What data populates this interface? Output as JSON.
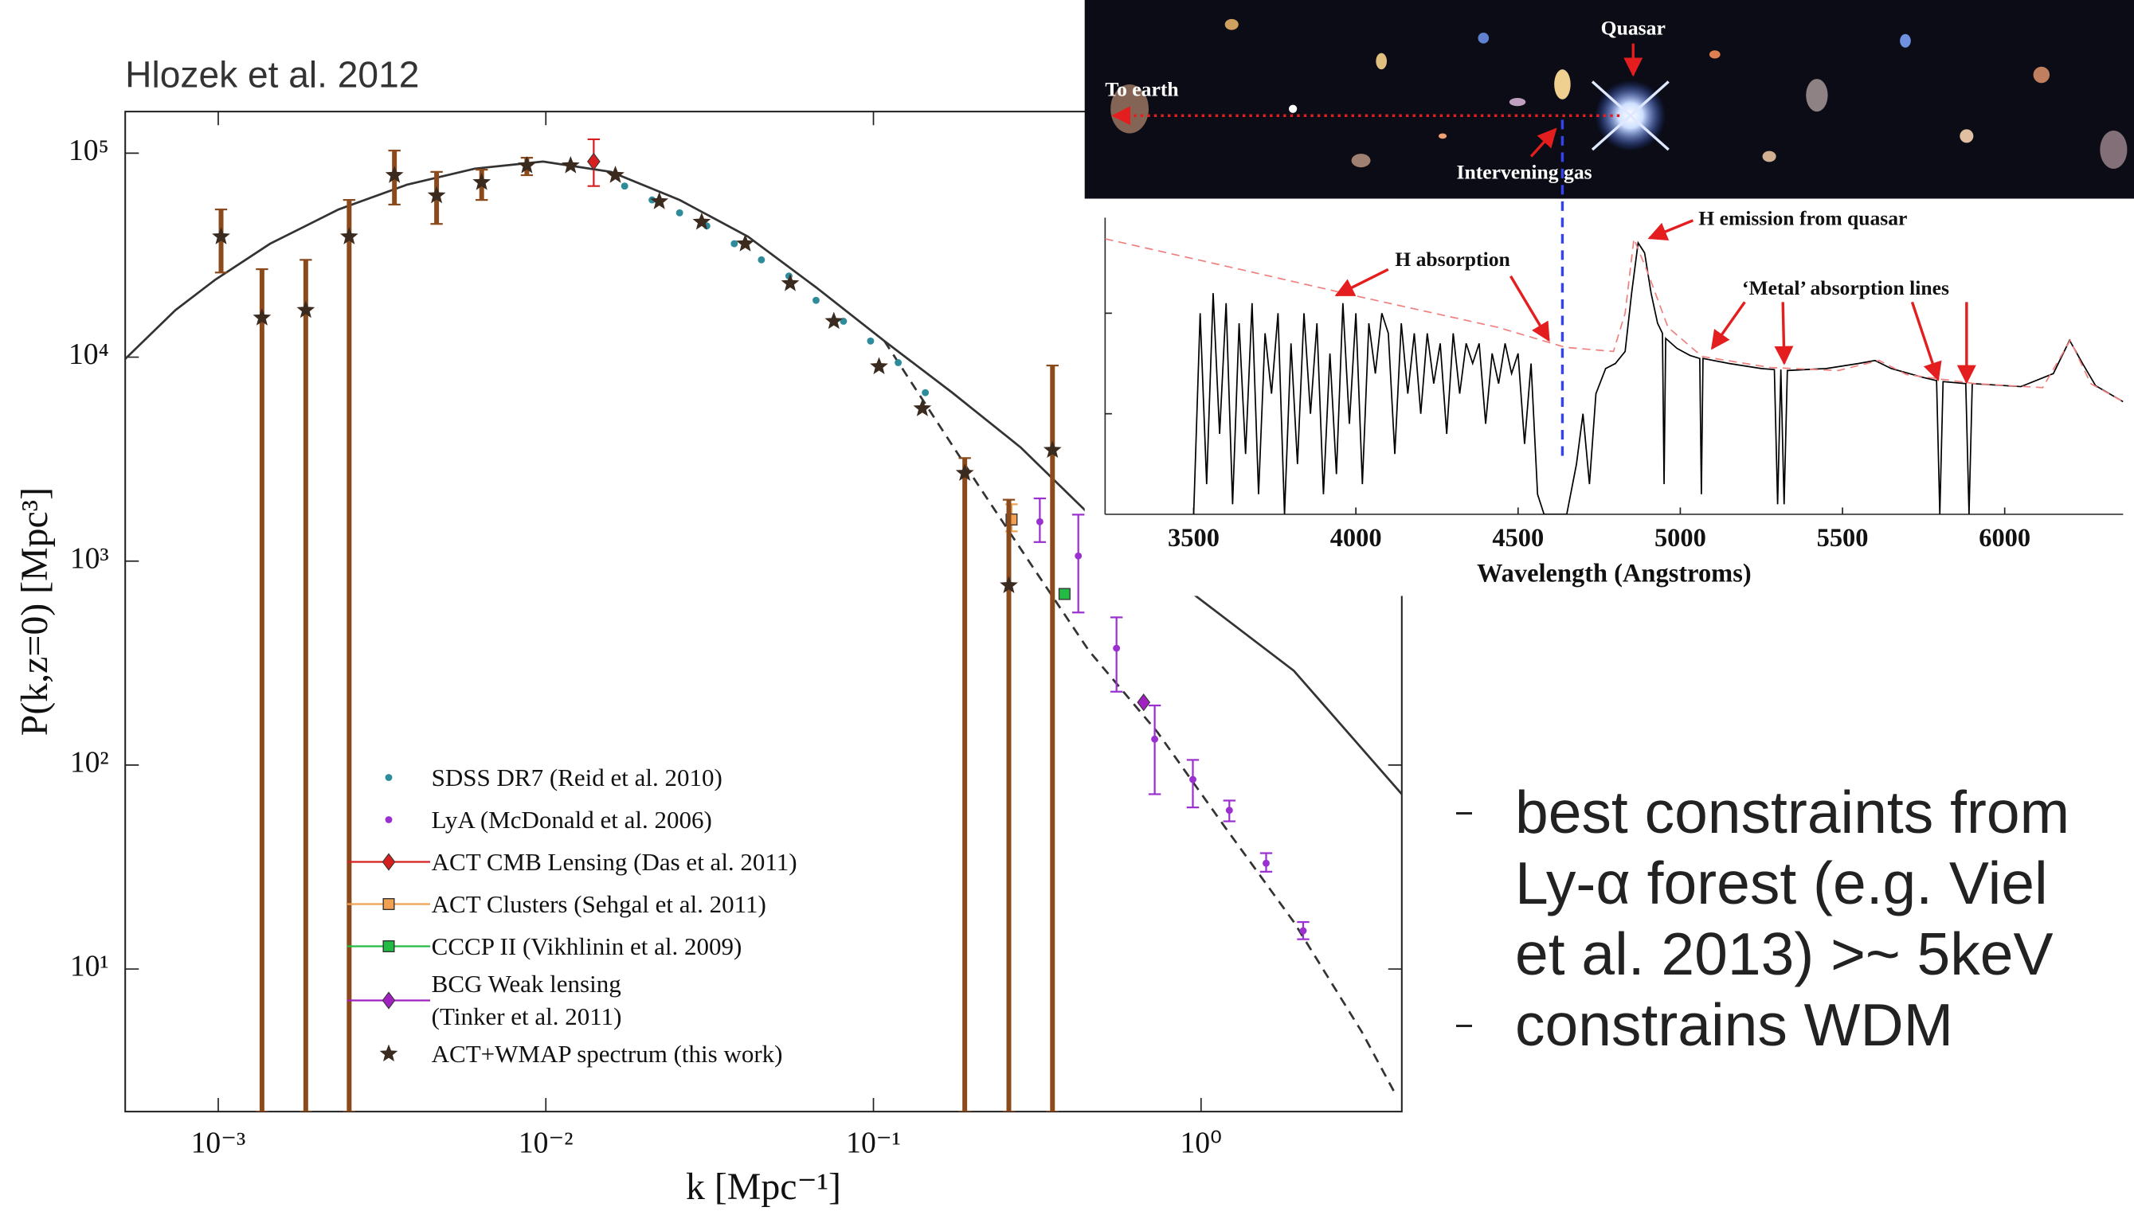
{
  "slide": {
    "citation": "Hlozek et al. 2012",
    "bullets": [
      "best constraints from Ly-α forest (e.g. Viel et al. 2013) >~ 5keV",
      "constrains WDM"
    ]
  },
  "image": {
    "labels": [
      "Quasar",
      "To earth",
      "Intervening gas"
    ]
  },
  "chart_data": [
    {
      "type": "scatter",
      "xlabel": "k [Mpc⁻¹]",
      "ylabel": "P(k,z=0) [Mpc³]",
      "xscale": "log",
      "yscale": "log",
      "xlim": [
        0.00052,
        4.1
      ],
      "ylim": [
        2,
        160000
      ],
      "xticks": [
        {
          "value": 0.001,
          "label": "10⁻³"
        },
        {
          "value": 0.01,
          "label": "10⁻²"
        },
        {
          "value": 0.1,
          "label": "10⁻¹"
        },
        {
          "value": 1,
          "label": "10⁰"
        }
      ],
      "yticks": [
        {
          "value": 10,
          "label": "10¹"
        },
        {
          "value": 100,
          "label": "10²"
        },
        {
          "value": 1000,
          "label": "10³"
        },
        {
          "value": 10000,
          "label": "10⁴"
        },
        {
          "value": 100000,
          "label": "10⁵"
        }
      ],
      "legend": "lower left",
      "series": [
        {
          "style": "solid",
          "color": "#333333",
          "x": [
            0.00052,
            0.00074,
            0.00098,
            0.00144,
            0.00233,
            0.00376,
            0.00607,
            0.0098,
            0.0158,
            0.0256,
            0.0414,
            0.0668,
            0.108,
            0.174,
            0.282,
            0.455,
            0.935,
            1.92,
            4.1
          ],
          "values": [
            9800,
            17000,
            24000,
            36000,
            53000,
            70000,
            84000,
            91000,
            81000,
            59000,
            39000,
            22000,
            12000,
            6700,
            3600,
            1700,
            700,
            290,
            72
          ]
        },
        {
          "style": "dashed",
          "color": "#333333",
          "x": [
            0.108,
            0.144,
            0.211,
            0.31,
            0.455,
            0.736,
            1.19,
            1.92,
            3.1,
            3.94
          ],
          "values": [
            12000,
            5900,
            2300,
            910,
            363,
            145,
            49,
            17,
            4.9,
            2.4
          ]
        },
        {
          "name": "SDSS DR7 (Reid et al. 2010)",
          "marker": "dot",
          "color": "#2e8b9a",
          "x": [
            0.0174,
            0.0211,
            0.0256,
            0.031,
            0.0376,
            0.0455,
            0.0552,
            0.0668,
            0.081,
            0.098,
            0.119,
            0.144
          ],
          "values": [
            69000,
            59000,
            51000,
            44000,
            36000,
            30000,
            25000,
            19000,
            15000,
            12000,
            9400,
            6700
          ]
        },
        {
          "name": "LyA (McDonald et al. 2006)",
          "marker": "dot",
          "color": "#9b30d0",
          "x": [
            0.322,
            0.422,
            0.552,
            0.722,
            0.944,
            1.22,
            1.58,
            2.05
          ],
          "values": [
            1560,
            1060,
            374,
            134,
            85,
            60,
            33,
            15.4
          ],
          "lower": [
            1240,
            560,
            229,
            72,
            62,
            53,
            30,
            14
          ],
          "upper": [
            2030,
            1690,
            530,
            196,
            106,
            67,
            37,
            17
          ]
        },
        {
          "name": "ACT CMB Lensing (Das et al. 2011)",
          "marker": "diamond",
          "color": "#d62020",
          "legend_line": true,
          "x": [
            0.014
          ],
          "values": [
            91000
          ],
          "lower": [
            69000
          ],
          "upper": [
            117000
          ]
        },
        {
          "name": "ACT Clusters (Sehgal et al. 2011)",
          "marker": "square",
          "color": "#f0a050",
          "legend_line": true,
          "x": [
            0.264
          ],
          "values": [
            1600
          ],
          "lower": [
            1400
          ],
          "upper": [
            1900
          ]
        },
        {
          "name": "CCCP II (Vikhlinin et al. 2009)",
          "marker": "square",
          "color": "#22bb44",
          "legend_line": true,
          "x": [
            0.383
          ],
          "values": [
            690
          ]
        },
        {
          "name": "BCG Weak lensing\n(Tinker et al. 2011)",
          "marker": "diamond",
          "color": "#a020c0",
          "legend_line": true,
          "x": [
            0.668
          ],
          "values": [
            203
          ]
        },
        {
          "name": "ACT+WMAP spectrum (this work)",
          "marker": "star",
          "color": "#3b2a1e",
          "bar_color": "#8b4a1c",
          "x": [
            0.00102,
            0.00136,
            0.00185,
            0.00251,
            0.00345,
            0.00464,
            0.00637,
            0.00875,
            0.0119,
            0.0163,
            0.0222,
            0.0299,
            0.0406,
            0.0557,
            0.0757,
            0.104,
            0.141,
            0.19,
            0.259,
            0.352
          ],
          "values": [
            39000,
            15600,
            17000,
            39000,
            78000,
            62000,
            72000,
            87000,
            87000,
            78000,
            58000,
            46000,
            36000,
            23000,
            15000,
            9000,
            5600,
            2700,
            760,
            3500
          ],
          "lower": [
            26000,
            2,
            2,
            2,
            56000,
            45000,
            59000,
            78000,
            null,
            null,
            null,
            null,
            null,
            null,
            null,
            null,
            null,
            2,
            2,
            2
          ],
          "upper": [
            53000,
            27000,
            30000,
            59000,
            103000,
            81000,
            83000,
            95000,
            null,
            null,
            null,
            null,
            null,
            null,
            null,
            null,
            null,
            3200,
            2000,
            9100
          ]
        }
      ]
    },
    {
      "type": "line",
      "xlabel": "Wavelength (Angstroms)",
      "xlim": [
        3227,
        6365
      ],
      "ylim": [
        0,
        2.95
      ],
      "xticks": [
        3500,
        4000,
        4500,
        5000,
        5500,
        6000
      ],
      "yticks": [
        1,
        2
      ],
      "ytick_labels": false,
      "annotations": [
        "H emission from quasar",
        "H absorption",
        "‘Metal’ absorption lines"
      ],
      "series": [
        {
          "style": "solid",
          "color": "#000000",
          "x": [
            3500,
            3520,
            3540,
            3560,
            3580,
            3600,
            3620,
            3640,
            3660,
            3680,
            3700,
            3720,
            3740,
            3760,
            3780,
            3800,
            3820,
            3840,
            3860,
            3880,
            3900,
            3920,
            3940,
            3960,
            3980,
            4000,
            4020,
            4040,
            4060,
            4080,
            4100,
            4120,
            4140,
            4160,
            4180,
            4200,
            4220,
            4240,
            4260,
            4280,
            4300,
            4320,
            4340,
            4360,
            4380,
            4400,
            4420,
            4440,
            4460,
            4480,
            4500,
            4520,
            4540,
            4560,
            4580,
            4600,
            4620,
            4640,
            4650,
            4680,
            4700,
            4720,
            4740,
            4770,
            4800,
            4830,
            4850,
            4870,
            4890,
            4910,
            4930,
            4945,
            4950,
            4955,
            4990,
            5030,
            5060,
            5065,
            5070,
            5150,
            5250,
            5290,
            5300,
            5310,
            5320,
            5330,
            5450,
            5550,
            5600,
            5650,
            5750,
            5790,
            5800,
            5810,
            5880,
            5890,
            5900,
            6050,
            6150,
            6200,
            6240,
            6280,
            6365
          ],
          "values": [
            0.0,
            2.0,
            0.3,
            2.2,
            0.8,
            2.1,
            0.1,
            1.9,
            0.6,
            2.1,
            0.2,
            1.8,
            1.2,
            2.0,
            0.0,
            1.7,
            0.5,
            2.0,
            1.0,
            1.9,
            0.2,
            1.6,
            0.4,
            2.1,
            0.9,
            2.0,
            0.3,
            1.9,
            1.4,
            2.0,
            1.8,
            0.6,
            1.9,
            1.2,
            1.8,
            1.0,
            1.8,
            1.3,
            1.7,
            0.8,
            1.8,
            1.2,
            1.7,
            1.5,
            1.7,
            0.9,
            1.6,
            1.3,
            1.7,
            1.4,
            1.6,
            0.7,
            1.5,
            0.2,
            0.0,
            0.0,
            0.0,
            0.0,
            0.0,
            0.5,
            1.0,
            0.3,
            1.2,
            1.45,
            1.5,
            1.62,
            2.2,
            2.7,
            2.6,
            2.2,
            1.9,
            1.8,
            0.3,
            1.75,
            1.65,
            1.58,
            1.55,
            0.2,
            1.55,
            1.5,
            1.45,
            1.44,
            0.1,
            1.44,
            0.1,
            1.43,
            1.45,
            1.5,
            1.53,
            1.45,
            1.36,
            1.33,
            0.0,
            1.32,
            1.3,
            0.0,
            1.3,
            1.27,
            1.4,
            1.73,
            1.5,
            1.28,
            1.12
          ]
        },
        {
          "style": "dashed",
          "color": "#f08080",
          "x": [
            3227,
            3597,
            4017,
            4437,
            4647,
            4794,
            4830,
            4857,
            4899,
            4962,
            5067,
            5277,
            5487,
            5613,
            5697,
            5907,
            6117,
            6202,
            6265,
            6365
          ],
          "values": [
            2.74,
            2.47,
            2.16,
            1.86,
            1.66,
            1.62,
            2.0,
            2.74,
            2.41,
            1.86,
            1.57,
            1.46,
            1.43,
            1.53,
            1.39,
            1.3,
            1.26,
            1.73,
            1.3,
            1.12
          ]
        }
      ]
    }
  ]
}
